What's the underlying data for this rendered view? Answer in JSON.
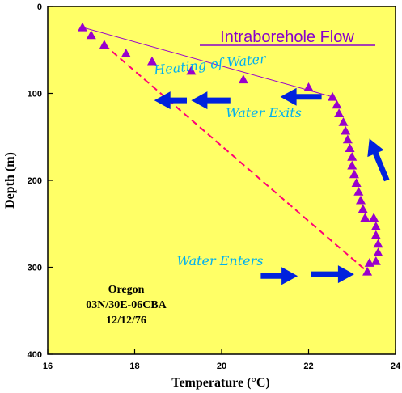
{
  "chart_data": {
    "type": "scatter",
    "title": "Intraborehole Flow",
    "xlabel": "Temperature (°C)",
    "ylabel": "Depth (m)",
    "xlim": [
      16,
      24
    ],
    "ylim": [
      0,
      400
    ],
    "y_inverted": true,
    "x_ticks": [
      16,
      18,
      20,
      22,
      24
    ],
    "y_ticks": [
      0,
      100,
      200,
      300,
      400
    ],
    "colors": {
      "plot_background": "#ffff66",
      "markers": "#9900cc",
      "dashed_line": "#ff0077",
      "arrows": "#0022dd",
      "annotation_text": "#00b0f0",
      "title": "#8800cc"
    },
    "series": [
      {
        "marker": "triangle",
        "points": [
          {
            "x": 16.8,
            "y": 24
          },
          {
            "x": 17.0,
            "y": 33
          },
          {
            "x": 17.3,
            "y": 44
          },
          {
            "x": 17.8,
            "y": 54
          },
          {
            "x": 18.4,
            "y": 63
          },
          {
            "x": 19.3,
            "y": 74
          },
          {
            "x": 20.5,
            "y": 84
          },
          {
            "x": 22.0,
            "y": 93
          },
          {
            "x": 22.55,
            "y": 104
          },
          {
            "x": 22.65,
            "y": 113
          },
          {
            "x": 22.7,
            "y": 123
          },
          {
            "x": 22.8,
            "y": 133
          },
          {
            "x": 22.85,
            "y": 143
          },
          {
            "x": 22.9,
            "y": 153
          },
          {
            "x": 22.95,
            "y": 163
          },
          {
            "x": 23.0,
            "y": 173
          },
          {
            "x": 23.0,
            "y": 183
          },
          {
            "x": 23.05,
            "y": 193
          },
          {
            "x": 23.1,
            "y": 203
          },
          {
            "x": 23.15,
            "y": 213
          },
          {
            "x": 23.2,
            "y": 223
          },
          {
            "x": 23.25,
            "y": 233
          },
          {
            "x": 23.3,
            "y": 243
          },
          {
            "x": 23.5,
            "y": 243
          },
          {
            "x": 23.55,
            "y": 253
          },
          {
            "x": 23.55,
            "y": 263
          },
          {
            "x": 23.6,
            "y": 273
          },
          {
            "x": 23.6,
            "y": 283
          },
          {
            "x": 23.55,
            "y": 293
          },
          {
            "x": 23.4,
            "y": 295
          },
          {
            "x": 23.35,
            "y": 305
          }
        ]
      }
    ],
    "fit_line": {
      "x": [
        16.8,
        22.55
      ],
      "y": [
        24,
        104
      ]
    },
    "dashed_line": {
      "x": [
        17.3,
        23.35
      ],
      "y": [
        44,
        305
      ]
    },
    "annotations": {
      "heating": "Heating of Water",
      "exits": "Water Exits",
      "enters": "Water Enters",
      "site_name": "Oregon",
      "site_id": "03N/30E-06CBA",
      "date": "12/12/76"
    },
    "arrows": [
      {
        "from": [
          22.3,
          104
        ],
        "to": [
          21.35,
          104
        ]
      },
      {
        "from": [
          20.2,
          108
        ],
        "to": [
          19.3,
          108
        ]
      },
      {
        "from": [
          19.2,
          108
        ],
        "to": [
          18.45,
          108
        ]
      },
      {
        "from": [
          20.9,
          310
        ],
        "to": [
          21.75,
          310
        ]
      },
      {
        "from": [
          22.05,
          308
        ],
        "to": [
          23.05,
          308
        ]
      },
      {
        "from": [
          23.8,
          200
        ],
        "to": [
          23.4,
          152
        ]
      }
    ]
  }
}
